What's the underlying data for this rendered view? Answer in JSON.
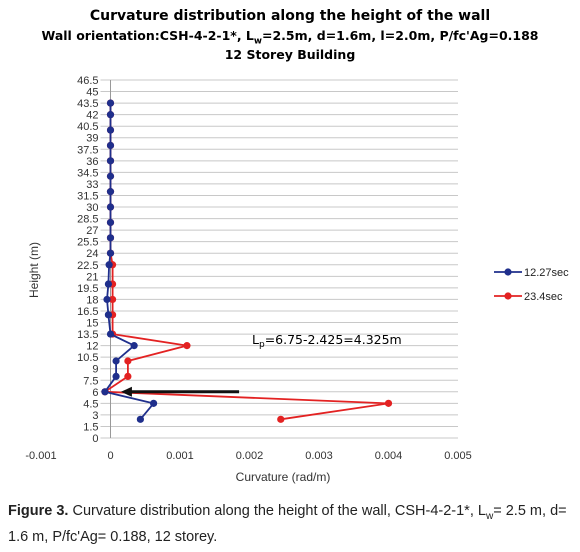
{
  "title_line1": "Curvature distribution along the height of the wall",
  "title_line2": {
    "pre": "Wall orientation:CSH-4-2-1*, L",
    "sub": "w",
    "post": "=2.5m, d=1.6m, l=2.0m, P/fc'Ag=0.188"
  },
  "title_line3": "12 Storey Building",
  "annotation": {
    "pre": "L",
    "sub": "p",
    "post": "=6.75-2.425=4.325m"
  },
  "caption": {
    "label": "Figure 3.",
    "text1": " Curvature distribution along the height of the wall, CSH-4-2-1*, L",
    "sub": "w",
    "text2": "= 2.5 m, d= 1.6 m, P/fc'Ag= 0.188, 12 storey."
  },
  "colors": {
    "series1": "#1f2f8c",
    "series2": "#e32222",
    "arrow": "#111111",
    "grid": "#c8c8c8"
  },
  "chart_data": {
    "type": "line",
    "xlabel": "Curvature (rad/m)",
    "ylabel": "Height (m)",
    "xlim": [
      -0.001,
      0.005
    ],
    "ylim": [
      0,
      46.5
    ],
    "xticks": [
      "-0.001",
      "0",
      "0.001",
      "0.002",
      "0.003",
      "0.004",
      "0.005"
    ],
    "xtick_values": [
      -0.001,
      0,
      0.001,
      0.002,
      0.003,
      0.004,
      0.005
    ],
    "yticks": [
      "0",
      "1.5",
      "3",
      "4.5",
      "6",
      "7.5",
      "9",
      "10.5",
      "12",
      "13.5",
      "15",
      "16.5",
      "18",
      "19.5",
      "21",
      "22.5",
      "24",
      "25.5",
      "27",
      "28.5",
      "30",
      "31.5",
      "33",
      "34.5",
      "36",
      "37.5",
      "39",
      "40.5",
      "42",
      "43.5",
      "45",
      "46.5"
    ],
    "grid": "horizontal",
    "legend_position": "right",
    "series": [
      {
        "name": "12.27sec",
        "points": [
          [
            0.00043,
            2.425
          ],
          [
            0.00062,
            4.5
          ],
          [
            -8e-05,
            6.0
          ],
          [
            8e-05,
            8.0
          ],
          [
            8e-05,
            10.0
          ],
          [
            0.00034,
            12.0
          ],
          [
            0.0,
            13.5
          ],
          [
            -3e-05,
            16.0
          ],
          [
            -5e-05,
            18.0
          ],
          [
            -3e-05,
            20.0
          ],
          [
            -2e-05,
            22.5
          ],
          [
            0.0,
            24.0
          ],
          [
            0.0,
            26.0
          ],
          [
            0.0,
            28.0
          ],
          [
            0.0,
            30.0
          ],
          [
            0.0,
            32.0
          ],
          [
            0.0,
            34.0
          ],
          [
            0.0,
            36.0
          ],
          [
            0.0,
            38.0
          ],
          [
            0.0,
            40.0
          ],
          [
            0.0,
            42.0
          ],
          [
            0.0,
            43.5
          ]
        ]
      },
      {
        "name": "23.4sec",
        "points": [
          [
            0.00245,
            2.425
          ],
          [
            0.004,
            4.5
          ],
          [
            -8e-05,
            6.0
          ],
          [
            0.00025,
            8.0
          ],
          [
            0.00025,
            10.0
          ],
          [
            0.0011,
            12.0
          ],
          [
            3e-05,
            13.5
          ],
          [
            3e-05,
            16.0
          ],
          [
            3e-05,
            18.0
          ],
          [
            3e-05,
            20.0
          ],
          [
            3e-05,
            22.5
          ],
          [
            0.0,
            24.0
          ],
          [
            0.0,
            26.0
          ],
          [
            0.0,
            28.0
          ],
          [
            0.0,
            30.0
          ],
          [
            0.0,
            32.0
          ],
          [
            0.0,
            34.0
          ],
          [
            0.0,
            36.0
          ],
          [
            0.0,
            38.0
          ],
          [
            0.0,
            40.0
          ],
          [
            0.0,
            42.0
          ],
          [
            0.0,
            43.5
          ]
        ]
      }
    ],
    "arrow": {
      "from": [
        0.00185,
        6.0
      ],
      "to": [
        0.00015,
        6.0
      ]
    }
  }
}
